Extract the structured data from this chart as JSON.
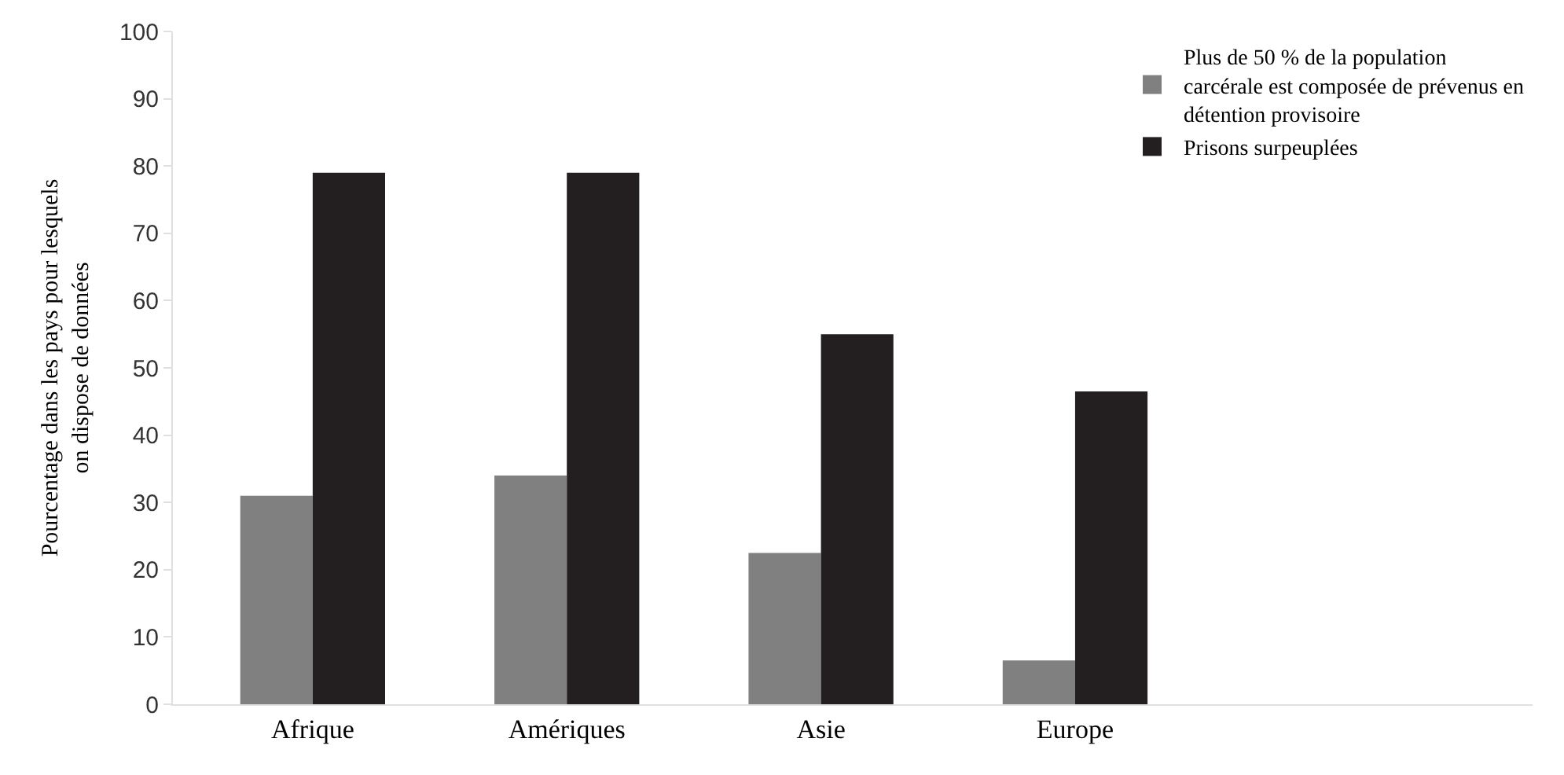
{
  "chart_data": {
    "type": "bar",
    "ylabel": "Pourcentage dans les pays pour lesquels on dispose de données",
    "categories": [
      "Afrique",
      "Amériques",
      "Asie",
      "Europe"
    ],
    "series": [
      {
        "name": "Plus de 50 % de la population carcérale est composée de prévenus en détention provisoire",
        "color": "#808080",
        "values": [
          31,
          34,
          22.5,
          6.5
        ]
      },
      {
        "name": "Prisons surpeuplées",
        "color": "#231f20",
        "values": [
          79,
          79,
          55,
          46.5
        ]
      }
    ],
    "ylim": [
      0,
      100
    ],
    "yticks": [
      0,
      10,
      20,
      30,
      40,
      50,
      60,
      70,
      80,
      90,
      100
    ],
    "legend": "top right"
  }
}
